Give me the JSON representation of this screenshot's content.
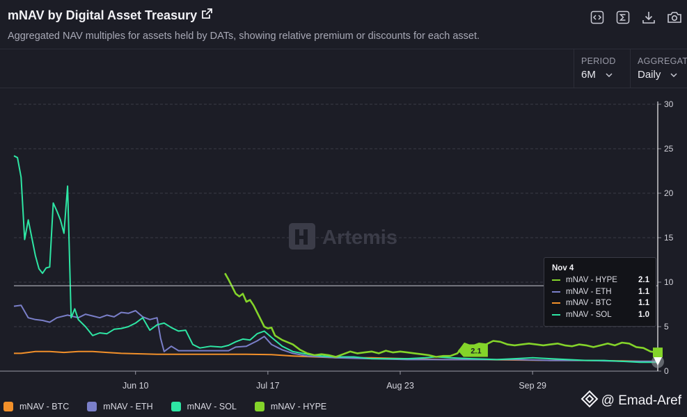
{
  "header": {
    "title": "mNAV by Digital Asset Treasury",
    "subtitle": "Aggregated NAV multiples for assets held by DATs, showing relative premium or discounts for each asset."
  },
  "controls": {
    "period": {
      "label": "PERIOD",
      "value": "6M"
    },
    "aggregate": {
      "label": "AGGREGATE",
      "value": "Daily"
    }
  },
  "watermark": "Artemis",
  "credit": "@ Emad-Aref",
  "colors": {
    "BTC": "#f2902a",
    "ETH": "#7a7fc9",
    "SOL": "#2ee6a4",
    "HYPE": "#84d42a",
    "background": "#1c1d26",
    "grid": "#3a3b46"
  },
  "tooltip": {
    "date": "Nov 4",
    "rows": [
      {
        "name": "mNAV - HYPE",
        "value": "2.1",
        "color": "#84d42a"
      },
      {
        "name": "mNAV - ETH",
        "value": "1.1",
        "color": "#7a7fc9"
      },
      {
        "name": "mNAV - BTC",
        "value": "1.1",
        "color": "#f2902a"
      },
      {
        "name": "mNAV - SOL",
        "value": "1.0",
        "color": "#2ee6a4"
      }
    ]
  },
  "chart_data": {
    "type": "line",
    "title": "mNAV by Digital Asset Treasury",
    "xlabel": "",
    "ylabel": "",
    "x_range": [
      "May 7",
      "Nov 4"
    ],
    "ylim": [
      0,
      30
    ],
    "yticks": [
      0,
      5,
      10,
      15,
      20,
      25,
      30
    ],
    "xticks": [
      {
        "day": 34,
        "label": "Jun 10"
      },
      {
        "day": 71,
        "label": "Jul 17"
      },
      {
        "day": 108,
        "label": "Aug 23"
      },
      {
        "day": 145,
        "label": "Sep 29"
      }
    ],
    "crosshair_value": 9.6,
    "end_label": "2.1",
    "series": [
      {
        "name": "mNAV - BTC",
        "key": "BTC",
        "points": [
          [
            0,
            2.0
          ],
          [
            2,
            2.0
          ],
          [
            4,
            2.1
          ],
          [
            6,
            2.2
          ],
          [
            10,
            2.2
          ],
          [
            14,
            2.1
          ],
          [
            18,
            2.2
          ],
          [
            22,
            2.2
          ],
          [
            26,
            2.1
          ],
          [
            30,
            2.0
          ],
          [
            40,
            1.9
          ],
          [
            55,
            1.9
          ],
          [
            65,
            1.9
          ],
          [
            72,
            1.85
          ],
          [
            78,
            1.7
          ],
          [
            84,
            1.6
          ],
          [
            90,
            1.5
          ],
          [
            100,
            1.5
          ],
          [
            110,
            1.4
          ],
          [
            120,
            1.3
          ],
          [
            130,
            1.3
          ],
          [
            140,
            1.25
          ],
          [
            150,
            1.2
          ],
          [
            160,
            1.2
          ],
          [
            170,
            1.15
          ],
          [
            175,
            1.1
          ],
          [
            180,
            1.1
          ]
        ]
      },
      {
        "name": "mNAV - ETH",
        "key": "ETH",
        "points": [
          [
            0,
            7.3
          ],
          [
            2,
            7.4
          ],
          [
            4,
            6.0
          ],
          [
            6,
            5.8
          ],
          [
            8,
            5.7
          ],
          [
            10,
            5.5
          ],
          [
            12,
            6.0
          ],
          [
            15,
            6.3
          ],
          [
            18,
            6.0
          ],
          [
            20,
            6.4
          ],
          [
            22,
            6.2
          ],
          [
            24,
            6.0
          ],
          [
            26,
            6.3
          ],
          [
            28,
            6.1
          ],
          [
            30,
            6.6
          ],
          [
            32,
            6.5
          ],
          [
            34,
            6.8
          ],
          [
            36,
            6.1
          ],
          [
            38,
            5.8
          ],
          [
            40,
            6.0
          ],
          [
            41,
            3.7
          ],
          [
            42,
            2.2
          ],
          [
            44,
            2.8
          ],
          [
            46,
            2.3
          ],
          [
            48,
            2.3
          ],
          [
            50,
            2.3
          ],
          [
            55,
            2.3
          ],
          [
            60,
            2.3
          ],
          [
            62,
            2.7
          ],
          [
            65,
            2.8
          ],
          [
            68,
            3.4
          ],
          [
            70,
            3.9
          ],
          [
            72,
            3.0
          ],
          [
            75,
            2.4
          ],
          [
            78,
            2.0
          ],
          [
            82,
            1.7
          ],
          [
            86,
            1.6
          ],
          [
            90,
            1.5
          ],
          [
            100,
            1.4
          ],
          [
            110,
            1.3
          ],
          [
            120,
            1.3
          ],
          [
            130,
            1.3
          ],
          [
            140,
            1.3
          ],
          [
            150,
            1.2
          ],
          [
            160,
            1.2
          ],
          [
            170,
            1.1
          ],
          [
            180,
            1.1
          ]
        ]
      },
      {
        "name": "mNAV - SOL",
        "key": "SOL",
        "points": [
          [
            0,
            24.2
          ],
          [
            1,
            24.0
          ],
          [
            2,
            21.8
          ],
          [
            3,
            14.8
          ],
          [
            4,
            17.0
          ],
          [
            5,
            15.0
          ],
          [
            6,
            13.0
          ],
          [
            7,
            11.5
          ],
          [
            8,
            11.0
          ],
          [
            9,
            11.6
          ],
          [
            10,
            11.7
          ],
          [
            11,
            18.9
          ],
          [
            12,
            18.0
          ],
          [
            13,
            17.0
          ],
          [
            14,
            15.5
          ],
          [
            15,
            20.8
          ],
          [
            16,
            6.0
          ],
          [
            17,
            7.0
          ],
          [
            18,
            5.8
          ],
          [
            20,
            5.0
          ],
          [
            22,
            4.0
          ],
          [
            24,
            4.3
          ],
          [
            26,
            4.2
          ],
          [
            28,
            4.7
          ],
          [
            30,
            4.8
          ],
          [
            32,
            5.0
          ],
          [
            34,
            5.4
          ],
          [
            36,
            6.0
          ],
          [
            38,
            4.6
          ],
          [
            40,
            5.2
          ],
          [
            42,
            5.4
          ],
          [
            44,
            4.9
          ],
          [
            46,
            4.5
          ],
          [
            48,
            4.6
          ],
          [
            50,
            3.0
          ],
          [
            52,
            2.6
          ],
          [
            55,
            2.8
          ],
          [
            58,
            2.7
          ],
          [
            60,
            2.9
          ],
          [
            62,
            3.3
          ],
          [
            64,
            3.6
          ],
          [
            66,
            3.5
          ],
          [
            68,
            4.2
          ],
          [
            70,
            4.5
          ],
          [
            72,
            3.8
          ],
          [
            75,
            2.8
          ],
          [
            78,
            2.2
          ],
          [
            82,
            1.9
          ],
          [
            86,
            1.7
          ],
          [
            90,
            1.6
          ],
          [
            95,
            1.6
          ],
          [
            100,
            1.4
          ],
          [
            110,
            1.4
          ],
          [
            115,
            1.5
          ],
          [
            118,
            1.6
          ],
          [
            122,
            1.5
          ],
          [
            128,
            1.4
          ],
          [
            132,
            1.35
          ],
          [
            135,
            1.3
          ],
          [
            140,
            1.4
          ],
          [
            145,
            1.5
          ],
          [
            150,
            1.4
          ],
          [
            155,
            1.3
          ],
          [
            160,
            1.2
          ],
          [
            165,
            1.2
          ],
          [
            170,
            1.1
          ],
          [
            175,
            1.0
          ],
          [
            180,
            1.0
          ]
        ]
      },
      {
        "name": "mNAV - HYPE",
        "key": "HYPE",
        "points": [
          [
            59,
            11.0
          ],
          [
            60,
            10.3
          ],
          [
            61,
            9.5
          ],
          [
            62,
            8.7
          ],
          [
            63,
            8.4
          ],
          [
            64,
            8.7
          ],
          [
            65,
            7.8
          ],
          [
            66,
            8.0
          ],
          [
            67,
            7.4
          ],
          [
            68,
            6.6
          ],
          [
            69,
            5.8
          ],
          [
            70,
            5.0
          ],
          [
            71,
            4.8
          ],
          [
            72,
            4.9
          ],
          [
            73,
            4.0
          ],
          [
            75,
            3.5
          ],
          [
            78,
            3.0
          ],
          [
            80,
            2.4
          ],
          [
            82,
            2.0
          ],
          [
            84,
            1.8
          ],
          [
            86,
            1.9
          ],
          [
            88,
            1.8
          ],
          [
            90,
            1.6
          ],
          [
            92,
            1.9
          ],
          [
            94,
            2.2
          ],
          [
            96,
            2.0
          ],
          [
            98,
            2.1
          ],
          [
            100,
            2.2
          ],
          [
            102,
            2.0
          ],
          [
            104,
            2.3
          ],
          [
            106,
            2.1
          ],
          [
            108,
            2.2
          ],
          [
            110,
            2.1
          ],
          [
            112,
            2.0
          ],
          [
            114,
            1.9
          ],
          [
            116,
            1.8
          ],
          [
            118,
            1.6
          ],
          [
            120,
            1.7
          ],
          [
            122,
            1.7
          ],
          [
            124,
            2.0
          ],
          [
            126,
            3.1
          ],
          [
            128,
            2.8
          ],
          [
            130,
            3.1
          ],
          [
            132,
            3.0
          ],
          [
            134,
            3.4
          ],
          [
            136,
            3.3
          ],
          [
            138,
            3.0
          ],
          [
            140,
            2.9
          ],
          [
            142,
            3.0
          ],
          [
            144,
            3.1
          ],
          [
            146,
            3.0
          ],
          [
            148,
            2.9
          ],
          [
            150,
            3.0
          ],
          [
            152,
            3.1
          ],
          [
            154,
            2.9
          ],
          [
            156,
            2.8
          ],
          [
            158,
            3.0
          ],
          [
            160,
            2.9
          ],
          [
            162,
            2.7
          ],
          [
            164,
            2.9
          ],
          [
            166,
            3.1
          ],
          [
            168,
            2.9
          ],
          [
            170,
            3.2
          ],
          [
            172,
            3.1
          ],
          [
            174,
            2.7
          ],
          [
            176,
            2.6
          ],
          [
            178,
            2.2
          ],
          [
            180,
            2.1
          ]
        ]
      }
    ]
  }
}
